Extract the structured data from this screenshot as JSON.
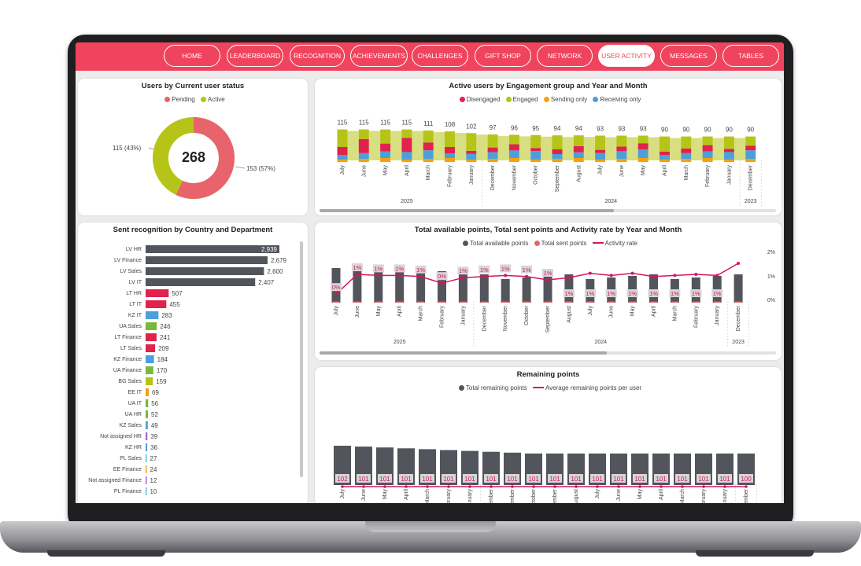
{
  "nav": {
    "items": [
      "HOME",
      "LEADERBOARD",
      "RECOGNITION",
      "ACHIEVEMENTS",
      "CHALLENGES",
      "GIFT SHOP",
      "NETWORK",
      "USER ACTIVITY",
      "MESSAGES",
      "TABLES"
    ],
    "active": "USER ACTIVITY"
  },
  "colors": {
    "accent": "#f0445e",
    "pending": "#e8636b",
    "active": "#b6c417",
    "disengaged": "#e0224d",
    "engaged": "#b6c417",
    "sending": "#f2a20c",
    "receiving": "#4d9fdb",
    "dark": "#52555b"
  },
  "months": [
    "July",
    "June",
    "May",
    "April",
    "March",
    "February",
    "January",
    "December",
    "November",
    "October",
    "September",
    "August",
    "July",
    "June",
    "May",
    "April",
    "March",
    "February",
    "January",
    "December"
  ],
  "years": [
    {
      "label": "2025"
    },
    {
      "label": "2024"
    },
    {
      "label": "2023"
    }
  ],
  "donut": {
    "title": "Users by Current user status",
    "legend": [
      "Pending",
      "Active"
    ],
    "total": "268",
    "pending_label": "153 (57%)",
    "active_label": "115 (43%)"
  },
  "engagement": {
    "title": "Active users by Engagement group and Year and Month",
    "legend": [
      "Disengaged",
      "Engaged",
      "Sending only",
      "Receiving only"
    ],
    "totals": [
      "115",
      "115",
      "115",
      "115",
      "111",
      "108",
      "102",
      "97",
      "96",
      "95",
      "94",
      "94",
      "93",
      "93",
      "93",
      "90",
      "90",
      "90",
      "90",
      "90"
    ]
  },
  "recognition": {
    "title": "Sent recognition by Country and Department",
    "rows": [
      {
        "label": "LV HR",
        "value": "2,939"
      },
      {
        "label": "LV Finance",
        "value": "2,679"
      },
      {
        "label": "LV Sales",
        "value": "2,600"
      },
      {
        "label": "LV IT",
        "value": "2,407"
      },
      {
        "label": "LT HR",
        "value": "507"
      },
      {
        "label": "LT IT",
        "value": "455"
      },
      {
        "label": "KZ IT",
        "value": "283"
      },
      {
        "label": "UA Sales",
        "value": "246"
      },
      {
        "label": "LT Finance",
        "value": "241"
      },
      {
        "label": "LT Sales",
        "value": "209"
      },
      {
        "label": "KZ Finance",
        "value": "184"
      },
      {
        "label": "UA Finance",
        "value": "170"
      },
      {
        "label": "BG Sales",
        "value": "159"
      },
      {
        "label": "EE IT",
        "value": "69"
      },
      {
        "label": "UA IT",
        "value": "56"
      },
      {
        "label": "UA HR",
        "value": "52"
      },
      {
        "label": "KZ Sales",
        "value": "49"
      },
      {
        "label": "Not assigned HR",
        "value": "39"
      },
      {
        "label": "KZ HR",
        "value": "36"
      },
      {
        "label": "PL Sales",
        "value": "27"
      },
      {
        "label": "EE Finance",
        "value": "24"
      },
      {
        "label": "Not assigned Finance",
        "value": "12"
      },
      {
        "label": "PL Finance",
        "value": "10"
      }
    ]
  },
  "points": {
    "title": "Total available points, Total sent points and Activity rate by Year and Month",
    "legend": [
      "Total available points",
      "Total sent points",
      "Activity rate"
    ],
    "yaxis": [
      "2%",
      "1%",
      "0%"
    ],
    "rate_labels": [
      "0%",
      "1%",
      "1%",
      "1%",
      "1%",
      "0%",
      "1%",
      "1%",
      "1%",
      "1%",
      "1%",
      "1%",
      "1%",
      "1%",
      "1%",
      "1%",
      "1%",
      "1%",
      "1%",
      "1%"
    ]
  },
  "remaining": {
    "title": "Remaining points",
    "legend": [
      "Total remaining points",
      "Average remaining points per user"
    ],
    "values": [
      "102",
      "101",
      "101",
      "101",
      "101",
      "101",
      "101",
      "101",
      "101",
      "101",
      "101",
      "101",
      "101",
      "101",
      "101",
      "101",
      "101",
      "101",
      "101",
      "100"
    ]
  }
}
